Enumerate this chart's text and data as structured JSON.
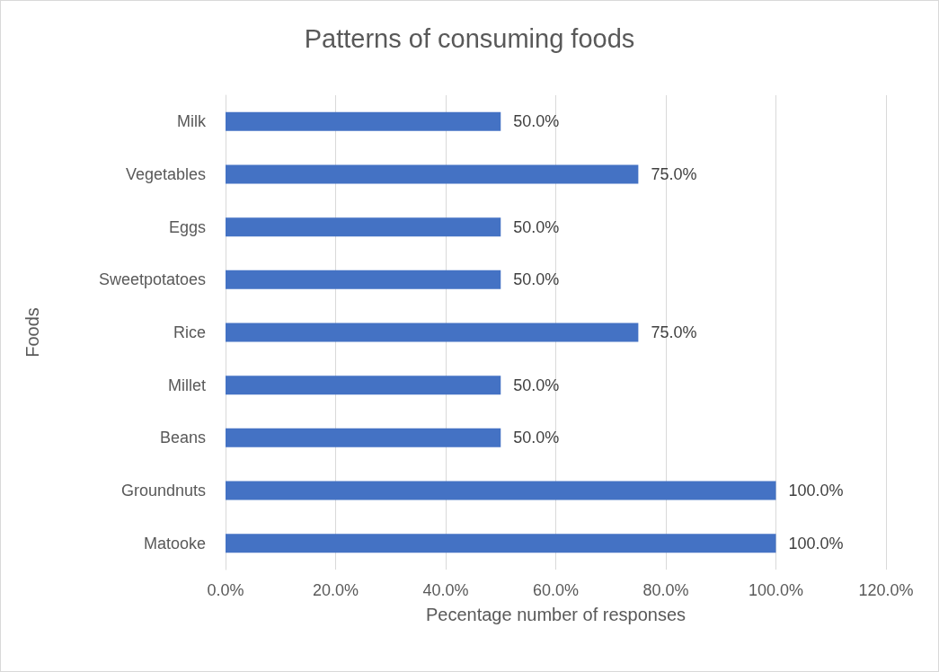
{
  "chart_data": {
    "type": "bar",
    "orientation": "horizontal",
    "title": "Patterns of consuming foods",
    "xlabel": "Pecentage number of responses",
    "ylabel": "Foods",
    "categories": [
      "Milk",
      "Vegetables",
      "Eggs",
      "Sweetpotatoes",
      "Rice",
      "Millet",
      "Beans",
      "Groundnuts",
      "Matooke"
    ],
    "values": [
      50,
      75,
      50,
      50,
      75,
      50,
      50,
      100,
      100
    ],
    "value_labels": [
      "50.0%",
      "75.0%",
      "50.0%",
      "50.0%",
      "75.0%",
      "50.0%",
      "50.0%",
      "100.0%",
      "100.0%"
    ],
    "color": "#4472c4",
    "xlim": [
      0,
      120
    ],
    "xticks": [
      {
        "value": 0,
        "label": "0.0%"
      },
      {
        "value": 20,
        "label": "20.0%"
      },
      {
        "value": 40,
        "label": "40.0%"
      },
      {
        "value": 60,
        "label": "60.0%"
      },
      {
        "value": 80,
        "label": "80.0%"
      },
      {
        "value": 100,
        "label": "100.0%"
      },
      {
        "value": 120,
        "label": "120.0%"
      }
    ],
    "grid": "x"
  }
}
